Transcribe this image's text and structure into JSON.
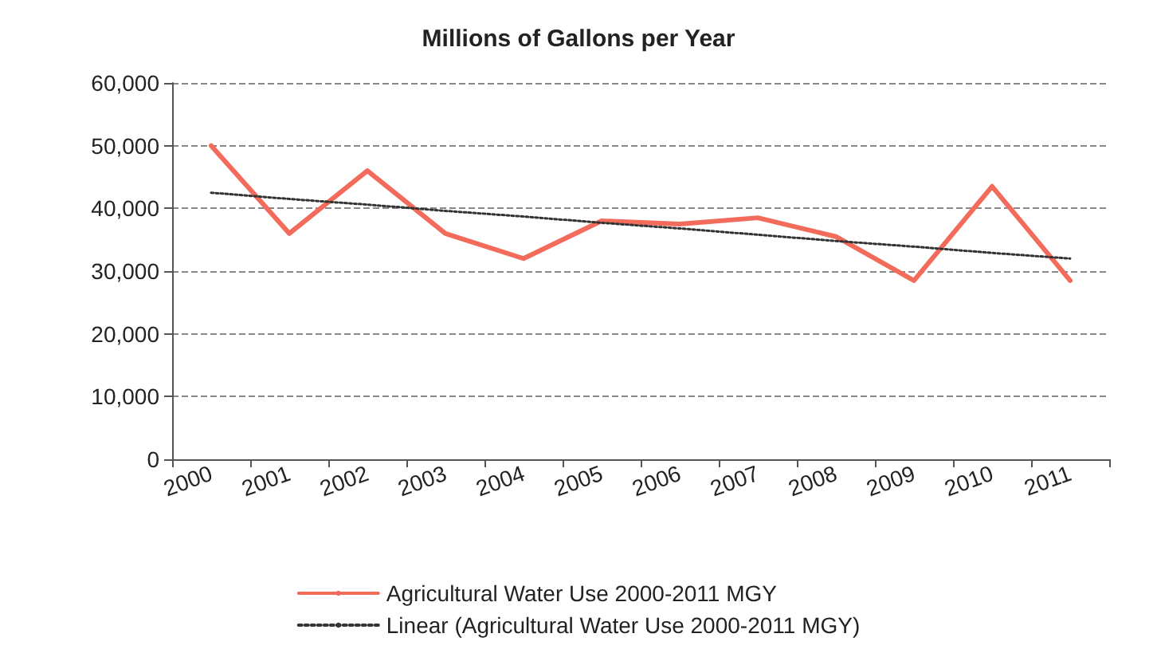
{
  "chart_data": {
    "type": "line",
    "title": "Millions of Gallons per Year",
    "categories": [
      "2000",
      "2001",
      "2002",
      "2003",
      "2004",
      "2005",
      "2006",
      "2007",
      "2008",
      "2009",
      "2010",
      "2011"
    ],
    "series": [
      {
        "name": "Agricultural Water Use 2000-2011 MGY",
        "color": "#f26b5b",
        "line_style": "solid",
        "values": [
          50000,
          36000,
          46000,
          36000,
          32000,
          38000,
          37500,
          38500,
          35500,
          28500,
          43500,
          28500
        ]
      },
      {
        "name": "Linear (Agricultural Water Use 2000-2011 MGY)",
        "color": "#333333",
        "line_style": "dotted",
        "values": [
          42500,
          41500,
          40600,
          39600,
          38700,
          37700,
          36800,
          35800,
          34800,
          33900,
          32900,
          32000
        ]
      }
    ],
    "ylim": [
      0,
      60000
    ],
    "yticks": [
      0,
      {
        "value": 10000,
        "label": "10,000"
      },
      {
        "value": 20000,
        "label": "20,000"
      },
      {
        "value": 30000,
        "label": "30,000"
      },
      {
        "value": 40000,
        "label": "40,000"
      },
      {
        "value": 50000,
        "label": "50,000"
      },
      {
        "value": 60000,
        "label": "60,000"
      }
    ],
    "grid": "y",
    "legend": "bottom",
    "marker": "none"
  }
}
